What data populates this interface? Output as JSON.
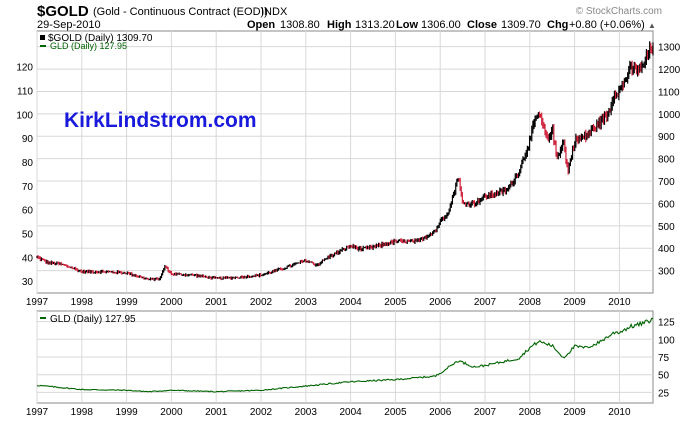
{
  "header": {
    "symbol": "$GOLD",
    "description": "(Gold - Continuous Contract (EOD))",
    "exchange": "INDX",
    "date": "29-Sep-2010",
    "watermark": "© StockCharts.com",
    "ohlc": [
      {
        "label": "Open",
        "value": "1308.80"
      },
      {
        "label": "High",
        "value": "1313.20"
      },
      {
        "label": "Low",
        "value": "1306.00"
      },
      {
        "label": "Close",
        "value": "1309.70"
      },
      {
        "label": "Chg",
        "value": "+0.80 (+0.06%)"
      }
    ],
    "dropdown_glyph": "▲"
  },
  "annotation": "KirkLindstrom.com",
  "colors": {
    "gold_up": "#000000",
    "gold_down": "#d0203a",
    "gld": "#006400",
    "annotation": "#1a1adc",
    "grid": "#d8d8d8",
    "frame": "#888888"
  },
  "chart_data": [
    {
      "type": "line",
      "panel": "main",
      "x_tick_labels": [
        "1997",
        "1998",
        "1999",
        "2000",
        "2001",
        "2002",
        "2003",
        "2004",
        "2005",
        "2006",
        "2007",
        "2008",
        "2009",
        "2010"
      ],
      "xlim": [
        1997.0,
        2010.75
      ],
      "series": [
        {
          "name": "$GOLD (Daily) 1309.70",
          "axis": "right",
          "x": [
            1997.0,
            1997.25,
            1997.5,
            1997.75,
            1998.0,
            1998.5,
            1999.0,
            1999.5,
            1999.75,
            1999.85,
            2000.0,
            2000.5,
            2001.0,
            2001.5,
            2002.0,
            2002.5,
            2003.0,
            2003.25,
            2003.5,
            2004.0,
            2004.25,
            2004.5,
            2005.0,
            2005.5,
            2005.9,
            2006.0,
            2006.2,
            2006.4,
            2006.5,
            2006.75,
            2007.0,
            2007.5,
            2007.75,
            2008.0,
            2008.1,
            2008.2,
            2008.4,
            2008.5,
            2008.6,
            2008.75,
            2008.85,
            2009.0,
            2009.25,
            2009.5,
            2009.75,
            2009.9,
            2010.0,
            2010.25,
            2010.5,
            2010.6,
            2010.75
          ],
          "values": [
            360,
            335,
            330,
            315,
            295,
            295,
            290,
            260,
            265,
            320,
            285,
            280,
            265,
            270,
            280,
            310,
            345,
            325,
            360,
            410,
            395,
            405,
            430,
            430,
            480,
            520,
            570,
            720,
            600,
            600,
            630,
            660,
            740,
            880,
            960,
            1000,
            880,
            940,
            800,
            880,
            740,
            880,
            900,
            950,
            1000,
            1100,
            1100,
            1200,
            1200,
            1250,
            1310
          ]
        },
        {
          "name": "GLD (Daily) 127.95",
          "axis": "left",
          "x": [],
          "values": []
        }
      ],
      "y_left": {
        "ticks": [
          30,
          40,
          50,
          60,
          70,
          80,
          90,
          100,
          110,
          120
        ],
        "ylim": [
          25,
          135
        ]
      },
      "y_right": {
        "ticks": [
          300,
          400,
          500,
          600,
          700,
          800,
          900,
          1000,
          1100,
          1200,
          1300
        ],
        "ylim": [
          200,
          1370
        ]
      }
    },
    {
      "type": "line",
      "panel": "lower",
      "x_tick_labels": [
        "1997",
        "1998",
        "1999",
        "2000",
        "2001",
        "2002",
        "2003",
        "2004",
        "2005",
        "2006",
        "2007",
        "2008",
        "2009",
        "2010"
      ],
      "xlim": [
        1997.0,
        2010.75
      ],
      "series": [
        {
          "name": "GLD (Daily) 127.95",
          "x": [
            1997.0,
            1997.5,
            1998.0,
            1999.0,
            1999.5,
            2000.0,
            2001.0,
            2002.0,
            2003.0,
            2004.0,
            2005.0,
            2005.9,
            2006.4,
            2006.75,
            2007.0,
            2007.75,
            2008.0,
            2008.2,
            2008.5,
            2008.75,
            2008.85,
            2009.0,
            2009.25,
            2009.5,
            2009.9,
            2010.0,
            2010.25,
            2010.5,
            2010.75
          ],
          "values": [
            35,
            32,
            29,
            28,
            26,
            28,
            26,
            28,
            34,
            40,
            43,
            48,
            70,
            61,
            63,
            73,
            88,
            97,
            91,
            74,
            80,
            90,
            88,
            94,
            110,
            110,
            118,
            122,
            128
          ]
        }
      ],
      "y_right": {
        "ticks": [
          25,
          50,
          75,
          100,
          125
        ],
        "ylim": [
          10,
          140
        ]
      }
    }
  ]
}
